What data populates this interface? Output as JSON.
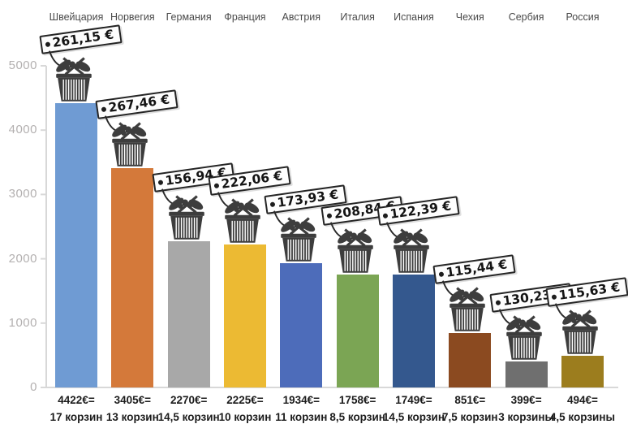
{
  "chart_data": {
    "type": "bar",
    "title": "",
    "ylabel": "",
    "xlabel": "",
    "ylim": [
      0,
      5000
    ],
    "grid": false,
    "legend": "none",
    "ytick_labels": [
      "5000",
      "4000",
      "3000",
      "2000",
      "1000",
      "0"
    ],
    "categories": [
      "Швейцария",
      "Норвегия",
      "Германия",
      "Франция",
      "Австрия",
      "Италия",
      "Испания",
      "Чехия",
      "Сербия",
      "Россия"
    ],
    "values": [
      4422,
      3405,
      2270,
      2225,
      1934,
      1758,
      1749,
      851,
      399,
      494
    ],
    "columns": [
      {
        "country": "Швейцария",
        "price_per_basket": "261,15 €",
        "total": "4422€=",
        "baskets": "17 корзин",
        "value": 4422,
        "color": "#6f9bd3"
      },
      {
        "country": "Норвегия",
        "price_per_basket": "267,46 €",
        "total": "3405€=",
        "baskets": "13 корзин",
        "value": 3405,
        "color": "#d4793a"
      },
      {
        "country": "Германия",
        "price_per_basket": "156,94 €",
        "total": "2270€=",
        "baskets": "14,5 корзин",
        "value": 2270,
        "color": "#a8a8a8"
      },
      {
        "country": "Франция",
        "price_per_basket": "222,06 €",
        "total": "2225€=",
        "baskets": "10 корзин",
        "value": 2225,
        "color": "#ecba33"
      },
      {
        "country": "Австрия",
        "price_per_basket": "173,93 €",
        "total": "1934€=",
        "baskets": "11 корзин",
        "value": 1934,
        "color": "#4d6cba"
      },
      {
        "country": "Италия",
        "price_per_basket": "208,84 €",
        "total": "1758€=",
        "baskets": "8,5 корзин",
        "value": 1758,
        "color": "#7ba554"
      },
      {
        "country": "Испания",
        "price_per_basket": "122,39 €",
        "total": "1749€=",
        "baskets": "14,5 корзин",
        "value": 1749,
        "color": "#34588e"
      },
      {
        "country": "Чехия",
        "price_per_basket": "115,44 €",
        "total": "851€=",
        "baskets": "7,5 корзин",
        "value": 851,
        "color": "#8b4a20"
      },
      {
        "country": "Сербия",
        "price_per_basket": "130,23 €",
        "total": "399€=",
        "baskets": "3 корзины",
        "value": 399,
        "color": "#6f6f6f"
      },
      {
        "country": "Россия",
        "price_per_basket": "115,63 €",
        "total": "494€=",
        "baskets": "4,5 корзины",
        "value": 494,
        "color": "#9c7d1e"
      }
    ]
  },
  "icons": {
    "basket": "grocery-basket-icon",
    "tag": "price-tag-with-string"
  },
  "colors": {
    "axis_line": "#d8d8d8",
    "ytick_label": "#b3b0b0",
    "country_label": "#4a4a4a",
    "bottom_label": "#1c1c1c",
    "basket_icon": "#3d3d3d",
    "tag_border": "#252525",
    "tag_background": "#fdfdfd"
  }
}
